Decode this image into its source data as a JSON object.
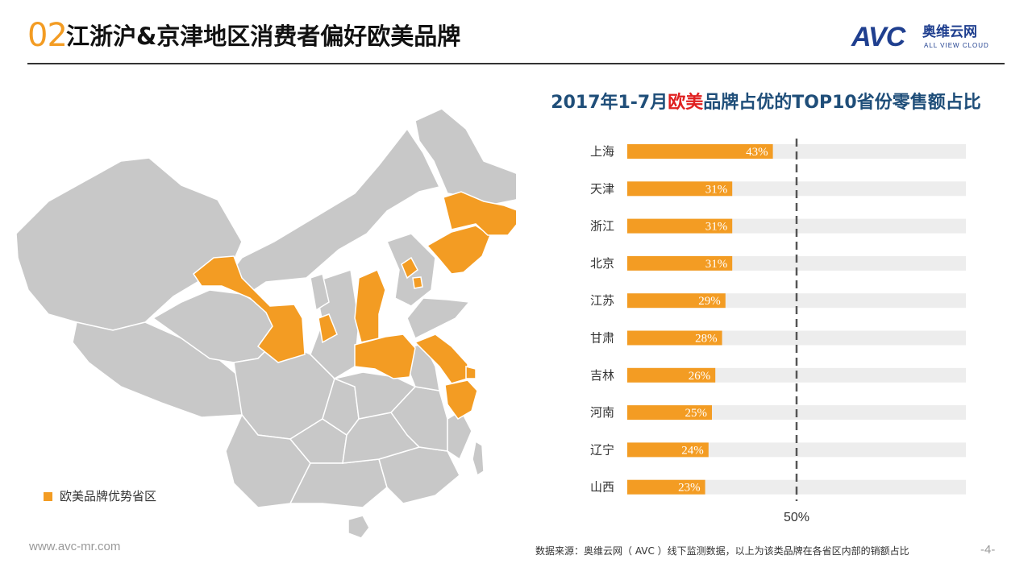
{
  "header": {
    "slide_number": "02",
    "title": "江浙沪&京津地区消费者偏好欧美品牌"
  },
  "logo": {
    "mark": "AVC",
    "brand_cn": "奥维云网",
    "brand_en": "ALL VIEW CLOUD"
  },
  "map": {
    "legend_label": "欧美品牌优势省区",
    "base_color": "#C8C8C8",
    "highlight_color": "#F39C23",
    "border_color": "#FFFFFF"
  },
  "chart_data": {
    "type": "bar",
    "orientation": "horizontal",
    "title_prefix": "2017年1-7月",
    "title_highlight": "欧美",
    "title_suffix": "品牌占优的TOP10省份零售额占比",
    "categories": [
      "上海",
      "天津",
      "浙江",
      "北京",
      "江苏",
      "甘肃",
      "吉林",
      "河南",
      "辽宁",
      "山西"
    ],
    "values": [
      43,
      31,
      31,
      31,
      29,
      28,
      26,
      25,
      24,
      23
    ],
    "value_labels": [
      "43%",
      "31%",
      "31%",
      "31%",
      "29%",
      "28%",
      "26%",
      "25%",
      "24%",
      "23%"
    ],
    "xlim": [
      0,
      100
    ],
    "reference_line": {
      "value": 50,
      "label": "50%",
      "style": "dashed"
    },
    "bar_color": "#F39C23",
    "track_color": "#EDEDED",
    "grid": false
  },
  "footer": {
    "url": "www.avc-mr.com",
    "source": "数据来源：奥维云网（ AVC ）线下监测数据，以上为该类品牌在各省区内部的销额占比",
    "page_number": "-4-"
  }
}
